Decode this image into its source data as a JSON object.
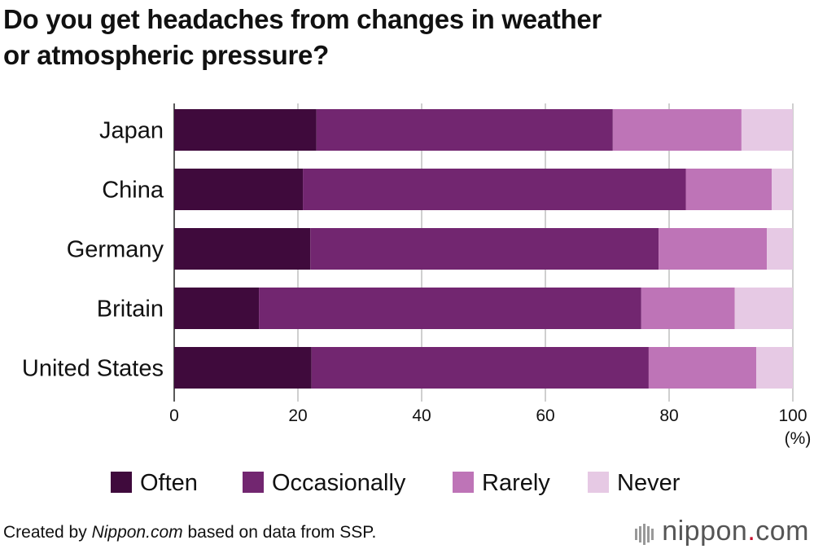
{
  "title_line1": "Do you get headaches from changes in weather",
  "title_line2": "or atmospheric pressure?",
  "footer": {
    "prefix": "Created by ",
    "source_name": "Nippon.com",
    "suffix": " based on data from SSP."
  },
  "logo": {
    "name": "nippon",
    "dot": ".",
    "tld": "com"
  },
  "colors": {
    "Often": "#3f0a3c",
    "Occasionally": "#722670",
    "Rarely": "#be74b7",
    "Never": "#e6c9e4"
  },
  "chart_data": {
    "type": "bar",
    "orientation": "horizontal",
    "stacked": true,
    "categories": [
      "Japan",
      "China",
      "Germany",
      "Britain",
      "United States"
    ],
    "series": [
      {
        "name": "Often",
        "values": [
          23.0,
          20.8,
          22.0,
          13.7,
          22.2
        ]
      },
      {
        "name": "Occasionally",
        "values": [
          47.9,
          61.9,
          56.3,
          61.8,
          54.5
        ]
      },
      {
        "name": "Rarely",
        "values": [
          20.8,
          13.9,
          17.5,
          15.1,
          17.4
        ]
      },
      {
        "name": "Never",
        "values": [
          8.3,
          3.4,
          4.2,
          9.4,
          5.9
        ]
      }
    ],
    "xlim": [
      0,
      100
    ],
    "xticks": [
      "0",
      "20",
      "40",
      "60",
      "80",
      "100"
    ],
    "xunit": "(%)",
    "grid": true,
    "legend_position": "bottom"
  }
}
